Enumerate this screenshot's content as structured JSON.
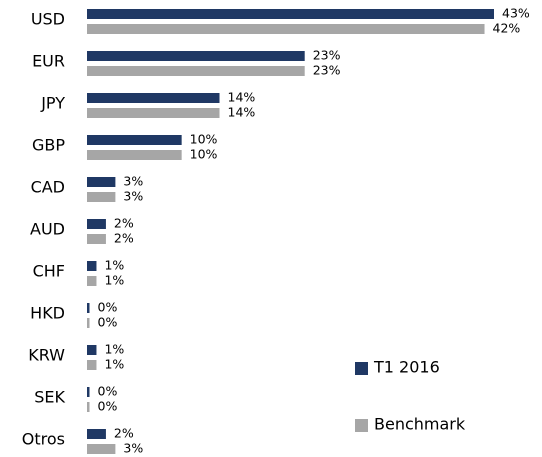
{
  "chart_data": {
    "type": "bar",
    "orientation": "horizontal",
    "categories": [
      "USD",
      "EUR",
      "JPY",
      "GBP",
      "CAD",
      "AUD",
      "CHF",
      "HKD",
      "KRW",
      "SEK",
      "Otros"
    ],
    "series": [
      {
        "name": "T1 2016",
        "color": "#1f3864",
        "values": [
          43,
          23,
          14,
          10,
          3,
          2,
          1,
          0,
          1,
          0,
          2
        ],
        "value_labels": [
          "43%",
          "23%",
          "14%",
          "10%",
          "3%",
          "2%",
          "1%",
          "0%",
          "1%",
          "0%",
          "2%"
        ]
      },
      {
        "name": "Benchmark",
        "color": "#a6a6a6",
        "values": [
          42,
          23,
          14,
          10,
          3,
          2,
          1,
          0,
          1,
          0,
          3
        ],
        "value_labels": [
          "42%",
          "23%",
          "14%",
          "10%",
          "3%",
          "2%",
          "1%",
          "0%",
          "1%",
          "0%",
          "3%"
        ]
      }
    ],
    "legend": "lower right"
  }
}
